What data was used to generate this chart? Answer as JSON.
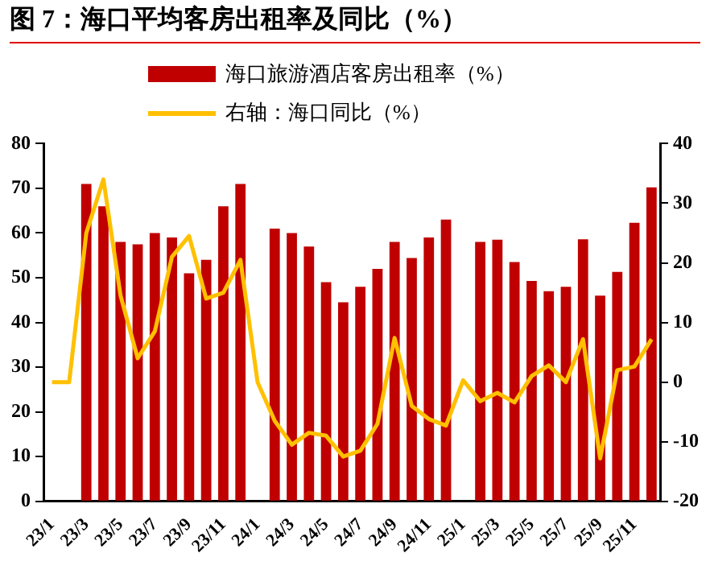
{
  "chart_data": {
    "type": "bar",
    "title": "图 7：海口平均客房出租率及同比（%）",
    "categories": [
      "23/1",
      null,
      "23/3",
      null,
      "23/5",
      null,
      "23/7",
      null,
      "23/9",
      null,
      "23/11",
      null,
      "24/1",
      null,
      "24/3",
      null,
      "24/5",
      null,
      "24/7",
      null,
      "24/9",
      null,
      "24/11",
      null,
      "25/1",
      null,
      "25/3",
      null,
      "25/5",
      null,
      "25/7",
      null,
      "25/9",
      null,
      "25/11",
      null
    ],
    "series": [
      {
        "name": "海口旅游酒店客房出租率（%）",
        "color": "#c00000",
        "values": [
          null,
          null,
          71,
          66,
          58,
          57.5,
          60,
          59,
          51,
          54,
          66,
          71,
          null,
          61,
          60,
          57,
          49,
          44.5,
          48,
          52,
          58,
          54.4,
          59,
          63,
          null,
          58,
          58.5,
          53.5,
          49.3,
          47,
          48,
          58.6,
          46,
          51.3,
          62.3,
          70.2
        ]
      },
      {
        "name": "右轴：海口同比（%）",
        "type": "line",
        "axis": "y2",
        "color": "#ffc000",
        "values": [
          0,
          0,
          25,
          34,
          14.5,
          4,
          8.5,
          21,
          24.5,
          14,
          15,
          20.5,
          0,
          -6.5,
          -10.5,
          -8.5,
          -9,
          -12.5,
          -11.5,
          -7,
          7.4,
          -4,
          -6.2,
          -7.3,
          0.3,
          -3.2,
          -1.8,
          -3.4,
          1,
          2.8,
          0,
          7.2,
          -12.8,
          2,
          2.6,
          7.2
        ]
      }
    ],
    "ylim": [
      0,
      80
    ],
    "yticks": [
      0,
      10,
      20,
      30,
      40,
      50,
      60,
      70,
      80
    ],
    "y2lim": [
      -20,
      40
    ],
    "y2ticks": [
      -20,
      -10,
      0,
      10,
      20,
      30,
      40
    ],
    "grid": false,
    "legend": "top",
    "marker": "none",
    "line_style": "solid"
  }
}
